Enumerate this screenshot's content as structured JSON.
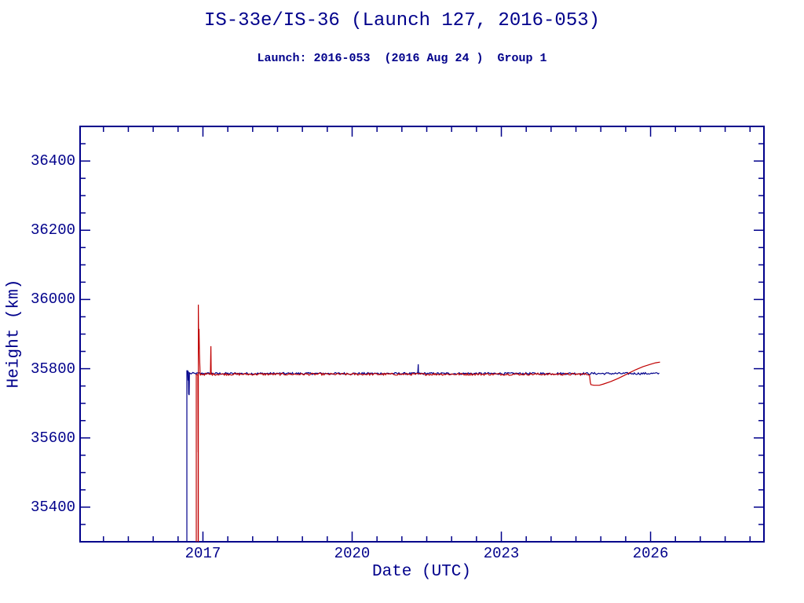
{
  "page": {
    "background": "#FFFFFF",
    "text_color": "#00008B"
  },
  "chart_data": {
    "type": "line",
    "title": "IS-33e/IS-36 (Launch 127, 2016-053)",
    "subtitle": "Launch: 2016-053  (2016 Aug 24 )  Group 1",
    "xlabel": "Date (UTC)",
    "ylabel": "Height (km)",
    "axis_color": "#00008B",
    "grid": false,
    "legend_position": "none",
    "xlim": [
      2014.53,
      2028.28
    ],
    "ylim": [
      35300,
      36500
    ],
    "x_major_ticks": [
      2017,
      2020,
      2023,
      2026
    ],
    "x_major_tick_labels": [
      "2017",
      "2020",
      "2023",
      "2026"
    ],
    "x_minor_step": 0.5,
    "y_major_ticks": [
      35400,
      35600,
      35800,
      36000,
      36200,
      36400
    ],
    "y_major_tick_labels": [
      "35400",
      "35600",
      "35800",
      "36000",
      "36200",
      "36400"
    ],
    "y_minor_step": 50,
    "geo_flat_level_km": 35786,
    "series": [
      {
        "name": "IS-33e (blue)",
        "color": "#00008B",
        "segments": [
          {
            "points": [
              [
                2016.677,
                35290
              ],
              [
                2016.677,
                35794
              ],
              [
                2016.695,
                35794
              ],
              [
                2016.7,
                35766
              ],
              [
                2016.707,
                35792
              ],
              [
                2016.714,
                35727
              ],
              [
                2016.723,
                35724
              ],
              [
                2016.729,
                35788
              ]
            ]
          },
          {
            "noisy": true,
            "from": 2016.74,
            "to": 2021.325,
            "base": 35786,
            "amp": 3
          },
          {
            "points": [
              [
                2021.329,
                35813
              ]
            ]
          },
          {
            "noisy": true,
            "from": 2021.334,
            "to": 2026.19,
            "base": 35786,
            "amp": 3
          }
        ]
      },
      {
        "name": "IS-36 (red)",
        "color": "#C00000",
        "segments": [
          {
            "points": [
              [
                2016.866,
                35290
              ],
              [
                2016.866,
                35783
              ],
              [
                2016.898,
                35783
              ],
              [
                2016.902,
                35560
              ],
              [
                2016.904,
                35560
              ],
              [
                2016.904,
                35290
              ],
              [
                2016.907,
                35290
              ],
              [
                2016.908,
                35985
              ],
              [
                2016.915,
                35857
              ],
              [
                2016.921,
                35915
              ],
              [
                2016.93,
                35846
              ],
              [
                2016.944,
                35783
              ]
            ]
          },
          {
            "noisy": true,
            "from": 2016.95,
            "to": 2017.155,
            "base": 35784,
            "amp": 3
          },
          {
            "points": [
              [
                2017.16,
                35865
              ],
              [
                2017.166,
                35784
              ]
            ]
          },
          {
            "noisy": true,
            "from": 2017.172,
            "to": 2024.785,
            "base": 35784,
            "amp": 3
          },
          {
            "points": [
              [
                2024.79,
                35760
              ],
              [
                2024.8,
                35754
              ],
              [
                2024.86,
                35752
              ],
              [
                2024.97,
                35752
              ],
              [
                2025.06,
                35756
              ],
              [
                2025.2,
                35763
              ],
              [
                2025.35,
                35772
              ],
              [
                2025.52,
                35784
              ],
              [
                2025.7,
                35797
              ],
              [
                2025.85,
                35806
              ],
              [
                2026.0,
                35813
              ],
              [
                2026.1,
                35817
              ],
              [
                2026.19,
                35819
              ]
            ]
          }
        ]
      }
    ]
  }
}
